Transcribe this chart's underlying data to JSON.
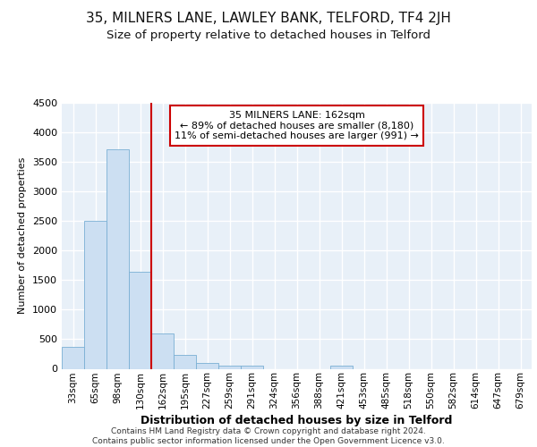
{
  "title1": "35, MILNERS LANE, LAWLEY BANK, TELFORD, TF4 2JH",
  "title2": "Size of property relative to detached houses in Telford",
  "xlabel": "Distribution of detached houses by size in Telford",
  "ylabel": "Number of detached properties",
  "bar_color": "#ccdff2",
  "bar_edge_color": "#7aafd4",
  "vline_color": "#cc0000",
  "vline_index": 4,
  "categories": [
    "33sqm",
    "65sqm",
    "98sqm",
    "130sqm",
    "162sqm",
    "195sqm",
    "227sqm",
    "259sqm",
    "291sqm",
    "324sqm",
    "356sqm",
    "388sqm",
    "421sqm",
    "453sqm",
    "485sqm",
    "518sqm",
    "550sqm",
    "582sqm",
    "614sqm",
    "647sqm",
    "679sqm"
  ],
  "values": [
    370,
    2500,
    3720,
    1640,
    600,
    240,
    100,
    55,
    50,
    0,
    0,
    0,
    50,
    0,
    0,
    0,
    0,
    0,
    0,
    0,
    0
  ],
  "ylim": [
    0,
    4500
  ],
  "yticks": [
    0,
    500,
    1000,
    1500,
    2000,
    2500,
    3000,
    3500,
    4000,
    4500
  ],
  "annotation_title": "35 MILNERS LANE: 162sqm",
  "annotation_line1": "← 89% of detached houses are smaller (8,180)",
  "annotation_line2": "11% of semi-detached houses are larger (991) →",
  "annotation_box_color": "#ffffff",
  "annotation_border_color": "#cc0000",
  "bg_color": "#e8f0f8",
  "footer1": "Contains HM Land Registry data © Crown copyright and database right 2024.",
  "footer2": "Contains public sector information licensed under the Open Government Licence v3.0.",
  "grid_color": "#ffffff",
  "title1_fontsize": 11,
  "title2_fontsize": 9.5,
  "ylabel_fontsize": 8,
  "xlabel_fontsize": 9,
  "tick_fontsize": 7.5,
  "ytick_fontsize": 8,
  "annotation_fontsize": 8,
  "footer_fontsize": 6.5
}
